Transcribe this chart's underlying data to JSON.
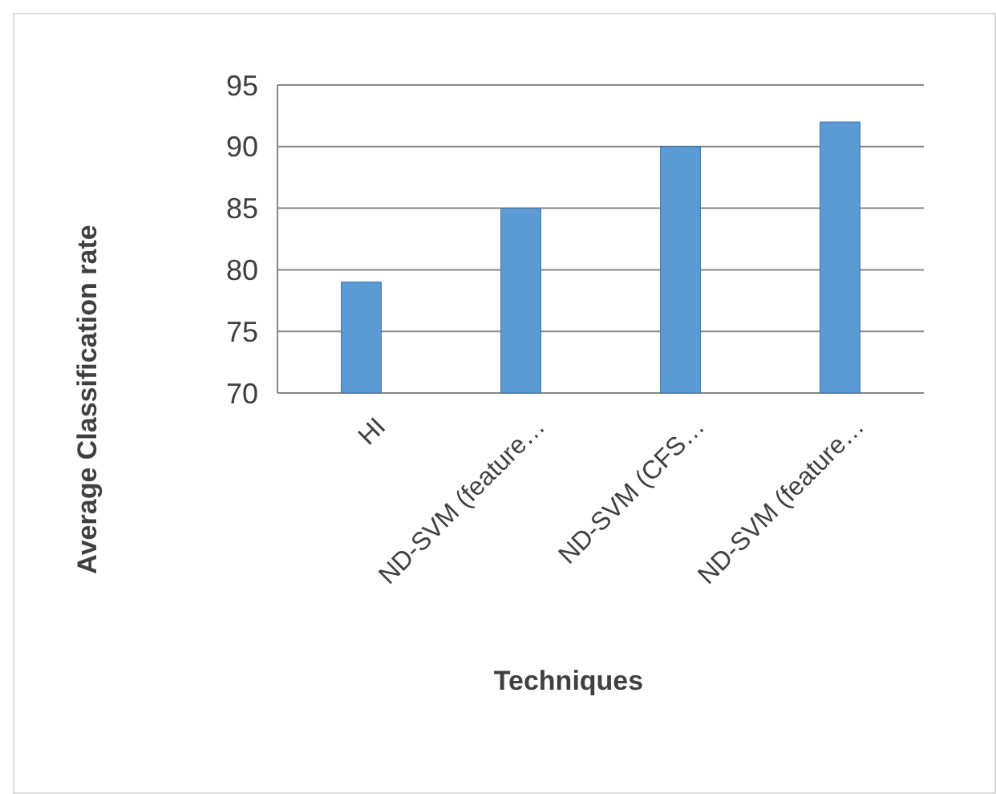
{
  "chart_data": {
    "type": "bar",
    "xlabel": "Techniques",
    "ylabel": "Average Classification rate",
    "categories": [
      "HI",
      "ND-SVM (feature…",
      "ND-SVM (CFS…",
      "ND-SVM (feature…"
    ],
    "values": [
      79,
      85,
      90,
      92
    ],
    "color": "#5b9bd5",
    "ylim": [
      70,
      95
    ],
    "yticks": [
      70,
      75,
      80,
      85,
      90,
      95
    ],
    "grid": "y"
  }
}
